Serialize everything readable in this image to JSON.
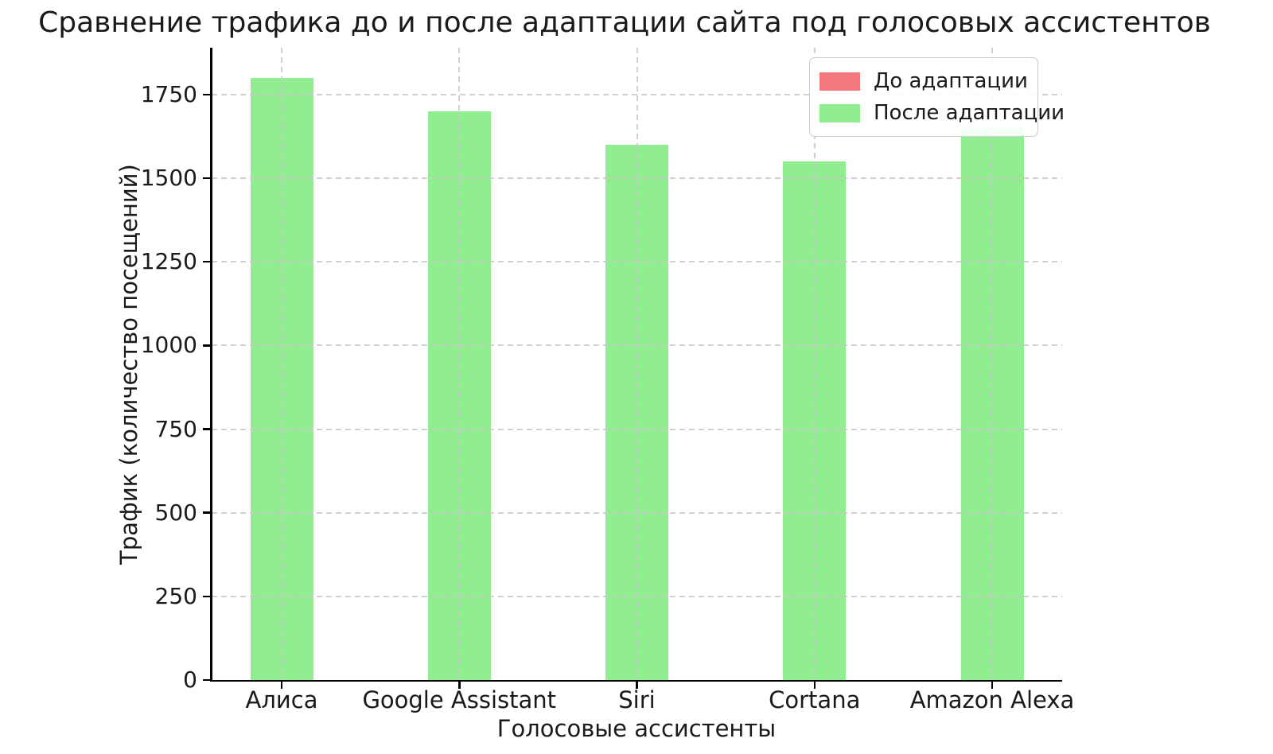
{
  "figure": {
    "background": "#ffffff",
    "text_color": "#1a1a1a",
    "grid_color": "#c9c9c9",
    "spine_color": "#000000"
  },
  "chart_data": {
    "type": "bar",
    "title": "Сравнение трафика до и после адаптации сайта под голосовых ассистентов",
    "xlabel": "Голосовые ассистенты",
    "ylabel": "Трафик (количество посещений)",
    "categories": [
      "Алиса",
      "Google Assistant",
      "Siri",
      "Cortana",
      "Amazon Alexa"
    ],
    "series": [
      {
        "name": "До адаптации",
        "color": "#f0787e",
        "values": null,
        "note": "bars fully occluded behind the 'После адаптации' bars; only legend swatch visible"
      },
      {
        "name": "После адаптации",
        "color": "#90ee90",
        "values": [
          1800,
          1700,
          1600,
          1550,
          1650
        ]
      }
    ],
    "yticks": [
      0,
      250,
      500,
      750,
      1000,
      1250,
      1500,
      1750
    ],
    "ylim": [
      0,
      1890
    ],
    "grid": "dashed, horizontal at yticks and vertical at bar centers, drawn over bars",
    "legend_position": "upper right"
  }
}
